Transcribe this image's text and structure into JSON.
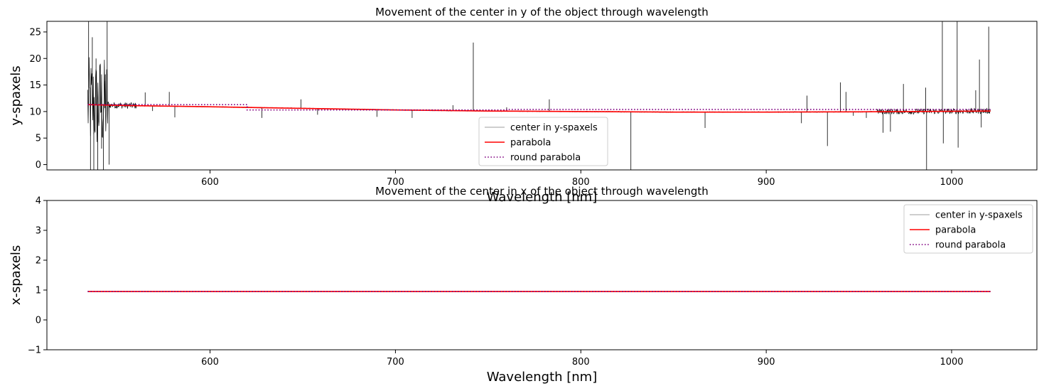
{
  "chart_data": [
    {
      "type": "line",
      "title": "Movement of the center in y of the object through wavelength",
      "xlabel": "Wavelength [nm]",
      "ylabel": "y-spaxels",
      "xlim": [
        512,
        1046
      ],
      "ylim": [
        -1,
        27
      ],
      "xticks": [
        600,
        700,
        800,
        900,
        1000
      ],
      "yticks": [
        0,
        5,
        10,
        15,
        20,
        25
      ],
      "grid": false,
      "legend_position": "lower-center",
      "series": [
        {
          "name": "center in y-spaxels",
          "color": "#000000",
          "legend_color": "#bdbdbd",
          "style": "solid",
          "noise_regions": [
            {
              "x": [
                534,
                545
              ],
              "amplitude": 9
            },
            {
              "x": [
                545,
                560
              ],
              "amplitude": 0.6
            },
            {
              "x": [
                960,
                1021
              ],
              "amplitude": 0.5
            }
          ],
          "spikes": [
            {
              "x": 534.5,
              "y": 27
            },
            {
              "x": 535.5,
              "y": -1
            },
            {
              "x": 536.5,
              "y": 24
            },
            {
              "x": 537.3,
              "y": -1
            },
            {
              "x": 538.5,
              "y": 20
            },
            {
              "x": 539.4,
              "y": -1
            },
            {
              "x": 540.8,
              "y": 19
            },
            {
              "x": 541.5,
              "y": 3
            },
            {
              "x": 542.5,
              "y": -1
            },
            {
              "x": 543.5,
              "y": 17
            },
            {
              "x": 544.5,
              "y": 27
            },
            {
              "x": 545.5,
              "y": 0
            },
            {
              "x": 565,
              "y": 13.6
            },
            {
              "x": 569,
              "y": 10.1
            },
            {
              "x": 578,
              "y": 13.7
            },
            {
              "x": 581,
              "y": 8.9
            },
            {
              "x": 628,
              "y": 8.8
            },
            {
              "x": 649,
              "y": 12.3
            },
            {
              "x": 658,
              "y": 9.4
            },
            {
              "x": 690,
              "y": 9.0
            },
            {
              "x": 709,
              "y": 8.8
            },
            {
              "x": 731,
              "y": 11.2
            },
            {
              "x": 742,
              "y": 23
            },
            {
              "x": 760,
              "y": 10.8
            },
            {
              "x": 783,
              "y": 12.3
            },
            {
              "x": 827,
              "y": -1
            },
            {
              "x": 867,
              "y": 6.9
            },
            {
              "x": 919,
              "y": 7.8
            },
            {
              "x": 922,
              "y": 13.0
            },
            {
              "x": 933,
              "y": 3.5
            },
            {
              "x": 940,
              "y": 15.5
            },
            {
              "x": 943,
              "y": 13.7
            },
            {
              "x": 947,
              "y": 9.2
            },
            {
              "x": 954,
              "y": 8.8
            },
            {
              "x": 963,
              "y": 6.0
            },
            {
              "x": 967,
              "y": 6.2
            },
            {
              "x": 974,
              "y": 15.2
            },
            {
              "x": 986,
              "y": 14.5
            },
            {
              "x": 986.5,
              "y": -1
            },
            {
              "x": 995,
              "y": 27
            },
            {
              "x": 995.5,
              "y": 4.0
            },
            {
              "x": 1003,
              "y": 27
            },
            {
              "x": 1003.5,
              "y": 3.2
            },
            {
              "x": 1013,
              "y": 14.0
            },
            {
              "x": 1015,
              "y": 19.8
            },
            {
              "x": 1016,
              "y": 7.0
            },
            {
              "x": 1020,
              "y": 26
            }
          ]
        },
        {
          "name": "parabola",
          "color": "#ff0000",
          "style": "solid",
          "x": [
            534,
            560,
            600,
            650,
            700,
            750,
            800,
            850,
            900,
            950,
            1000,
            1021
          ],
          "y": [
            11.3,
            11.1,
            10.9,
            10.6,
            10.3,
            10.1,
            10.0,
            9.9,
            9.9,
            9.95,
            10.05,
            10.1
          ]
        },
        {
          "name": "round parabola",
          "color": "#800080",
          "style": "dotted",
          "x": [
            534,
            620,
            620,
            760,
            760,
            1021
          ],
          "y": [
            11.3,
            11.3,
            10.3,
            10.3,
            10.4,
            10.4
          ]
        }
      ]
    },
    {
      "type": "line",
      "title": "Movement of the center in x of the object through wavelength",
      "xlabel": "Wavelength [nm]",
      "ylabel": "x-spaxels",
      "xlim": [
        512,
        1046
      ],
      "ylim": [
        -1,
        4
      ],
      "xticks": [
        600,
        700,
        800,
        900,
        1000
      ],
      "yticks": [
        -1,
        0,
        1,
        2,
        3,
        4
      ],
      "grid": false,
      "legend_position": "upper-right",
      "series": [
        {
          "name": "center in y-spaxels",
          "color": "#bdbdbd",
          "style": "solid",
          "x": [
            534,
            1021
          ],
          "y": [
            0.95,
            0.95
          ]
        },
        {
          "name": "parabola",
          "color": "#ff0000",
          "style": "solid",
          "x": [
            534,
            1021
          ],
          "y": [
            0.95,
            0.95
          ]
        },
        {
          "name": "round parabola",
          "color": "#800080",
          "style": "dotted",
          "x": [
            534,
            1021
          ],
          "y": [
            0.95,
            0.95
          ]
        }
      ]
    }
  ]
}
